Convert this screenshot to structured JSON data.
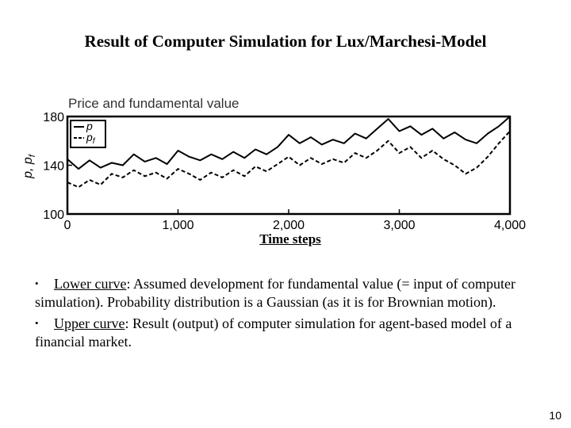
{
  "slide": {
    "title": "Result of Computer Simulation for Lux/Marchesi-Model",
    "page_number": "10"
  },
  "chart_data": {
    "type": "line",
    "title": "Price and fundamental value",
    "xlabel": "Time steps",
    "ylabel": "p, p_f",
    "ylabel_main": "p, p",
    "ylabel_sub": "f",
    "xlim": [
      0,
      4000
    ],
    "ylim": [
      100,
      180
    ],
    "xticks": [
      0,
      1000,
      2000,
      3000,
      4000
    ],
    "xtick_labels": [
      "0",
      "1,000",
      "2,000",
      "3,000",
      "4,000"
    ],
    "yticks": [
      100,
      140,
      180
    ],
    "ytick_labels": [
      "100",
      "140",
      "180"
    ],
    "legend_position": "top-left",
    "grid": false,
    "series": [
      {
        "name": "p",
        "legend_main": "p",
        "legend_sub": "",
        "style": "solid",
        "color": "#000000",
        "x": [
          0,
          100,
          200,
          300,
          400,
          500,
          600,
          700,
          800,
          900,
          1000,
          1100,
          1200,
          1300,
          1400,
          1500,
          1600,
          1700,
          1800,
          1900,
          2000,
          2100,
          2200,
          2300,
          2400,
          2500,
          2600,
          2700,
          2800,
          2900,
          3000,
          3100,
          3200,
          3300,
          3400,
          3500,
          3600,
          3700,
          3800,
          3900,
          4000
        ],
        "y": [
          145,
          137,
          144,
          138,
          142,
          140,
          149,
          143,
          146,
          141,
          152,
          147,
          144,
          149,
          145,
          151,
          146,
          153,
          149,
          155,
          165,
          158,
          163,
          157,
          161,
          158,
          166,
          162,
          170,
          178,
          168,
          172,
          165,
          170,
          162,
          167,
          161,
          158,
          166,
          172,
          180
        ]
      },
      {
        "name": "p_f",
        "legend_main": "p",
        "legend_sub": "f",
        "style": "dashed",
        "color": "#000000",
        "x": [
          0,
          100,
          200,
          300,
          400,
          500,
          600,
          700,
          800,
          900,
          1000,
          1100,
          1200,
          1300,
          1400,
          1500,
          1600,
          1700,
          1800,
          1900,
          2000,
          2100,
          2200,
          2300,
          2400,
          2500,
          2600,
          2700,
          2800,
          2900,
          3000,
          3100,
          3200,
          3300,
          3400,
          3500,
          3600,
          3700,
          3800,
          3900,
          4000
        ],
        "y": [
          126,
          122,
          128,
          124,
          133,
          130,
          136,
          131,
          134,
          129,
          137,
          133,
          128,
          134,
          130,
          136,
          131,
          139,
          135,
          141,
          147,
          140,
          146,
          141,
          145,
          142,
          150,
          146,
          152,
          160,
          150,
          155,
          146,
          152,
          145,
          140,
          133,
          138,
          147,
          158,
          168
        ]
      }
    ]
  },
  "bullets": [
    {
      "mark": "•",
      "term": "Lower curve",
      "text": ": Assumed development for fundamental value (= input of computer simulation). Probability distribution is a Gaussian (as it is for Brownian motion)."
    },
    {
      "mark": "•",
      "term": "Upper curve",
      "text": ": Result (output) of computer simulation for agent-based model of a financial market."
    }
  ]
}
